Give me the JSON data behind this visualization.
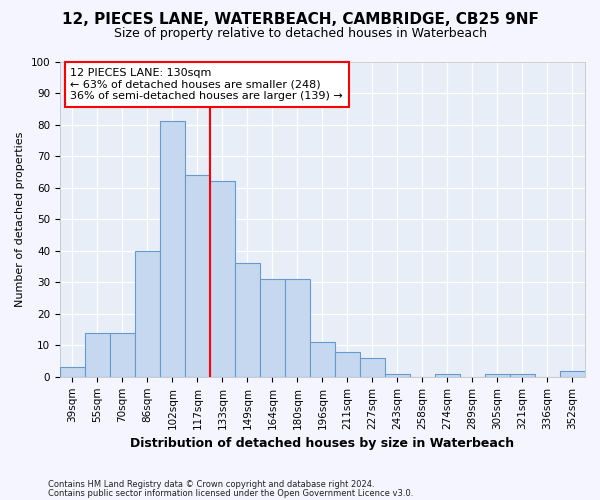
{
  "title_line1": "12, PIECES LANE, WATERBEACH, CAMBRIDGE, CB25 9NF",
  "title_line2": "Size of property relative to detached houses in Waterbeach",
  "xlabel": "Distribution of detached houses by size in Waterbeach",
  "ylabel": "Number of detached properties",
  "categories": [
    "39sqm",
    "55sqm",
    "70sqm",
    "86sqm",
    "102sqm",
    "117sqm",
    "133sqm",
    "149sqm",
    "164sqm",
    "180sqm",
    "196sqm",
    "211sqm",
    "227sqm",
    "243sqm",
    "258sqm",
    "274sqm",
    "289sqm",
    "305sqm",
    "321sqm",
    "336sqm",
    "352sqm"
  ],
  "values": [
    3,
    14,
    14,
    40,
    81,
    64,
    62,
    36,
    31,
    31,
    11,
    8,
    6,
    1,
    0,
    1,
    0,
    1,
    1,
    0,
    2
  ],
  "bar_color": "#c5d8f0",
  "bar_edge_color": "#6699cc",
  "bar_width": 1.0,
  "reference_line_index": 6,
  "reference_line_label": "12 PIECES LANE: 130sqm",
  "annotation_line1": "← 63% of detached houses are smaller (248)",
  "annotation_line2": "36% of semi-detached houses are larger (139) →",
  "ylim": [
    0,
    100
  ],
  "yticks": [
    0,
    10,
    20,
    30,
    40,
    50,
    60,
    70,
    80,
    90,
    100
  ],
  "background_color": "#e8eef8",
  "grid_color": "#ffffff",
  "fig_bg_color": "#f5f5ff",
  "footnote1": "Contains HM Land Registry data © Crown copyright and database right 2024.",
  "footnote2": "Contains public sector information licensed under the Open Government Licence v3.0.",
  "title1_fontsize": 11,
  "title2_fontsize": 9,
  "ylabel_fontsize": 8,
  "xlabel_fontsize": 9,
  "tick_fontsize": 7.5,
  "annot_fontsize": 8
}
